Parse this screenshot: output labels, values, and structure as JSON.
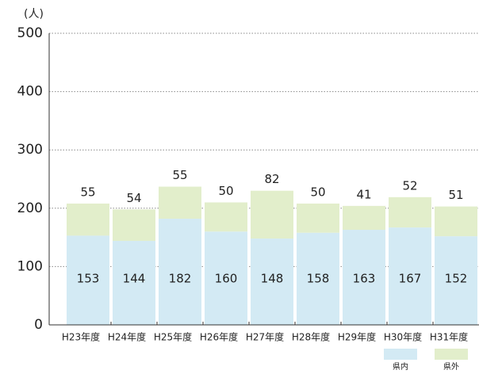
{
  "chart_data": {
    "type": "stacked_bar",
    "unit_label": "(人)",
    "categories": [
      "H23年度",
      "H24年度",
      "H25年度",
      "H26年度",
      "H27年度",
      "H28年度",
      "H29年度",
      "H30年度",
      "H31年度"
    ],
    "series": [
      {
        "name": "県内",
        "color": "#d3eaf4",
        "values": [
          153,
          144,
          182,
          160,
          148,
          158,
          163,
          167,
          152
        ]
      },
      {
        "name": "県外",
        "color": "#e2eecb",
        "values": [
          55,
          54,
          55,
          50,
          82,
          50,
          41,
          52,
          51
        ]
      }
    ],
    "ylim": [
      0,
      500
    ],
    "yticks": [
      0,
      100,
      200,
      300,
      400,
      500
    ],
    "grid": true
  }
}
